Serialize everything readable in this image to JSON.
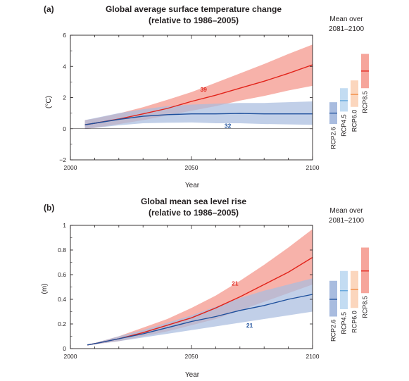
{
  "chart_data": [
    {
      "type": "line",
      "panel_label": "(a)",
      "title": "Global average surface temperature change",
      "subtitle": "(relative to 1986–2005)",
      "xlabel": "Year",
      "ylabel": "(°C)",
      "xlim": [
        2000,
        2100
      ],
      "ylim": [
        -2,
        6
      ],
      "xticks": [
        2000,
        2050,
        2100
      ],
      "yticks": [
        -2,
        0,
        2,
        4,
        6
      ],
      "x": [
        2006,
        2010,
        2020,
        2030,
        2040,
        2050,
        2060,
        2070,
        2080,
        2090,
        2100
      ],
      "series": [
        {
          "name": "RCP8.5",
          "color": "#e2231a",
          "fill": "#f6a59b",
          "values": [
            0.25,
            0.35,
            0.62,
            0.95,
            1.3,
            1.75,
            2.15,
            2.6,
            3.05,
            3.55,
            4.1
          ],
          "lower": [
            0.0,
            0.05,
            0.3,
            0.55,
            0.85,
            1.15,
            1.45,
            1.8,
            2.1,
            2.45,
            2.75
          ],
          "upper": [
            0.55,
            0.65,
            0.98,
            1.38,
            1.85,
            2.35,
            2.95,
            3.55,
            4.15,
            4.8,
            5.4
          ],
          "annotation": "39"
        },
        {
          "name": "RCP2.6",
          "color": "#1d4f9c",
          "fill": "#a9bcdf",
          "values": [
            0.25,
            0.35,
            0.6,
            0.8,
            0.9,
            0.95,
            0.95,
            0.98,
            0.95,
            0.95,
            0.95
          ],
          "lower": [
            0.0,
            0.05,
            0.22,
            0.35,
            0.38,
            0.4,
            0.35,
            0.35,
            0.3,
            0.28,
            0.25
          ],
          "upper": [
            0.55,
            0.68,
            1.0,
            1.25,
            1.45,
            1.55,
            1.6,
            1.65,
            1.65,
            1.7,
            1.75
          ],
          "annotation": "32"
        }
      ],
      "mean_bars": {
        "title_line1": "Mean over",
        "title_line2": "2081–2100",
        "items": [
          {
            "name": "RCP2.6",
            "low": 0.3,
            "mean": 1.0,
            "high": 1.7,
            "fill": "#a9bcdf",
            "line": "#1d4f9c"
          },
          {
            "name": "RCP4.5",
            "low": 1.1,
            "mean": 1.8,
            "high": 2.6,
            "fill": "#c3dcf2",
            "line": "#5da3d9"
          },
          {
            "name": "RCP6.0",
            "low": 1.4,
            "mean": 2.2,
            "high": 3.1,
            "fill": "#fbd6bd",
            "line": "#f2883d"
          },
          {
            "name": "RCP8.5",
            "low": 2.6,
            "mean": 3.7,
            "high": 4.8,
            "fill": "#f6a59b",
            "line": "#e2231a"
          }
        ]
      }
    },
    {
      "type": "line",
      "panel_label": "(b)",
      "title": "Global mean sea level rise",
      "subtitle": "(relative to 1986–2005)",
      "xlabel": "Year",
      "ylabel": "(m)",
      "xlim": [
        2000,
        2100
      ],
      "ylim": [
        0,
        1
      ],
      "xticks": [
        2000,
        2050,
        2100
      ],
      "yticks": [
        0,
        0.2,
        0.4,
        0.6,
        0.8,
        1
      ],
      "x": [
        2007,
        2010,
        2020,
        2030,
        2040,
        2050,
        2060,
        2070,
        2080,
        2090,
        2100
      ],
      "series": [
        {
          "name": "RCP8.5",
          "color": "#e2231a",
          "fill": "#f6a59b",
          "values": [
            0.03,
            0.04,
            0.08,
            0.13,
            0.19,
            0.25,
            0.33,
            0.42,
            0.52,
            0.62,
            0.74
          ],
          "lower": [
            0.03,
            0.035,
            0.06,
            0.1,
            0.14,
            0.19,
            0.24,
            0.31,
            0.38,
            0.45,
            0.52
          ],
          "upper": [
            0.03,
            0.045,
            0.1,
            0.17,
            0.24,
            0.33,
            0.43,
            0.55,
            0.68,
            0.82,
            0.97
          ],
          "annotation": "21"
        },
        {
          "name": "RCP2.6",
          "color": "#1d4f9c",
          "fill": "#a9bcdf",
          "values": [
            0.03,
            0.04,
            0.08,
            0.12,
            0.17,
            0.22,
            0.26,
            0.31,
            0.35,
            0.4,
            0.44
          ],
          "lower": [
            0.03,
            0.035,
            0.06,
            0.09,
            0.12,
            0.15,
            0.18,
            0.21,
            0.24,
            0.27,
            0.3
          ],
          "upper": [
            0.03,
            0.045,
            0.1,
            0.15,
            0.21,
            0.27,
            0.34,
            0.41,
            0.47,
            0.52,
            0.57
          ],
          "annotation": "21"
        }
      ],
      "mean_bars": {
        "title_line1": "Mean over",
        "title_line2": "2081–2100",
        "items": [
          {
            "name": "RCP2.6",
            "low": 0.26,
            "mean": 0.4,
            "high": 0.55,
            "fill": "#a9bcdf",
            "line": "#1d4f9c"
          },
          {
            "name": "RCP4.5",
            "low": 0.32,
            "mean": 0.47,
            "high": 0.63,
            "fill": "#c3dcf2",
            "line": "#5da3d9"
          },
          {
            "name": "RCP6.0",
            "low": 0.33,
            "mean": 0.48,
            "high": 0.63,
            "fill": "#fbd6bd",
            "line": "#f2883d"
          },
          {
            "name": "RCP8.5",
            "low": 0.45,
            "mean": 0.63,
            "high": 0.82,
            "fill": "#f6a59b",
            "line": "#e2231a"
          }
        ]
      }
    }
  ]
}
